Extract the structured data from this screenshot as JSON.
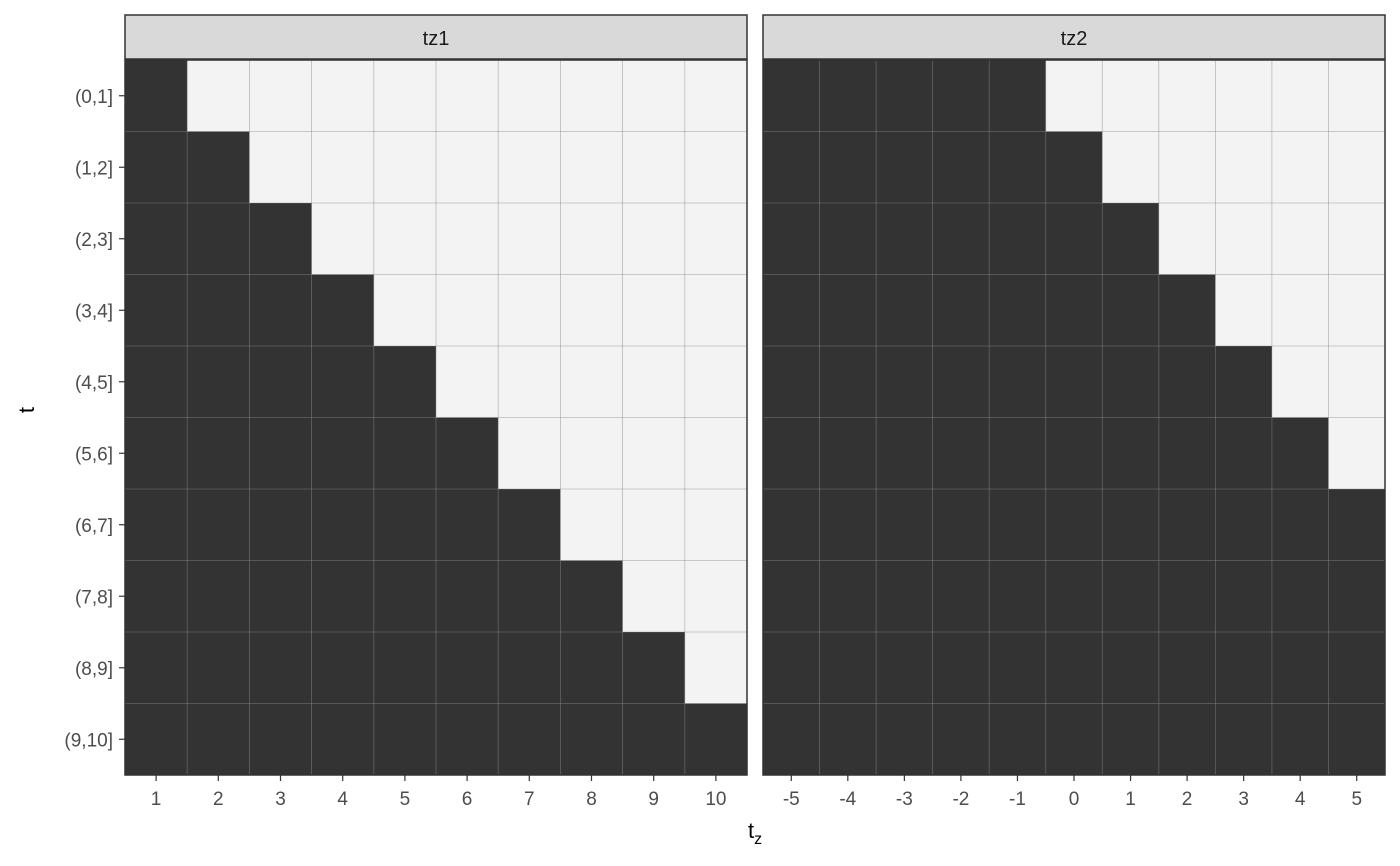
{
  "chart_data": {
    "type": "heatmap",
    "xlabel_base": "t",
    "xlabel_sub": "z",
    "ylabel": "t",
    "y_categories": [
      "(0,1]",
      "(1,2]",
      "(2,3]",
      "(3,4]",
      "(4,5]",
      "(5,6]",
      "(6,7]",
      "(7,8]",
      "(8,9]",
      "(9,10]"
    ],
    "colors": {
      "filled": "#333333",
      "empty": "#f3f3f3",
      "strip": "#d9d9d9",
      "border": "#333333",
      "grid": "#e4e4e4",
      "text": "#4d4d4d"
    },
    "panels": [
      {
        "label": "tz1",
        "x_categories": [
          "1",
          "2",
          "3",
          "4",
          "5",
          "6",
          "7",
          "8",
          "9",
          "10"
        ],
        "cells": [
          [
            1,
            0,
            0,
            0,
            0,
            0,
            0,
            0,
            0,
            0
          ],
          [
            1,
            1,
            0,
            0,
            0,
            0,
            0,
            0,
            0,
            0
          ],
          [
            1,
            1,
            1,
            0,
            0,
            0,
            0,
            0,
            0,
            0
          ],
          [
            1,
            1,
            1,
            1,
            0,
            0,
            0,
            0,
            0,
            0
          ],
          [
            1,
            1,
            1,
            1,
            1,
            0,
            0,
            0,
            0,
            0
          ],
          [
            1,
            1,
            1,
            1,
            1,
            1,
            0,
            0,
            0,
            0
          ],
          [
            1,
            1,
            1,
            1,
            1,
            1,
            1,
            0,
            0,
            0
          ],
          [
            1,
            1,
            1,
            1,
            1,
            1,
            1,
            1,
            0,
            0
          ],
          [
            1,
            1,
            1,
            1,
            1,
            1,
            1,
            1,
            1,
            0
          ],
          [
            1,
            1,
            1,
            1,
            1,
            1,
            1,
            1,
            1,
            1
          ]
        ]
      },
      {
        "label": "tz2",
        "x_categories": [
          "-5",
          "-4",
          "-3",
          "-2",
          "-1",
          "0",
          "1",
          "2",
          "3",
          "4",
          "5"
        ],
        "cells": [
          [
            1,
            1,
            1,
            1,
            1,
            0,
            0,
            0,
            0,
            0,
            0
          ],
          [
            1,
            1,
            1,
            1,
            1,
            1,
            0,
            0,
            0,
            0,
            0
          ],
          [
            1,
            1,
            1,
            1,
            1,
            1,
            1,
            0,
            0,
            0,
            0
          ],
          [
            1,
            1,
            1,
            1,
            1,
            1,
            1,
            1,
            0,
            0,
            0
          ],
          [
            1,
            1,
            1,
            1,
            1,
            1,
            1,
            1,
            1,
            0,
            0
          ],
          [
            1,
            1,
            1,
            1,
            1,
            1,
            1,
            1,
            1,
            1,
            0
          ],
          [
            1,
            1,
            1,
            1,
            1,
            1,
            1,
            1,
            1,
            1,
            1
          ],
          [
            1,
            1,
            1,
            1,
            1,
            1,
            1,
            1,
            1,
            1,
            1
          ],
          [
            1,
            1,
            1,
            1,
            1,
            1,
            1,
            1,
            1,
            1,
            1
          ],
          [
            1,
            1,
            1,
            1,
            1,
            1,
            1,
            1,
            1,
            1,
            1
          ]
        ]
      }
    ]
  }
}
